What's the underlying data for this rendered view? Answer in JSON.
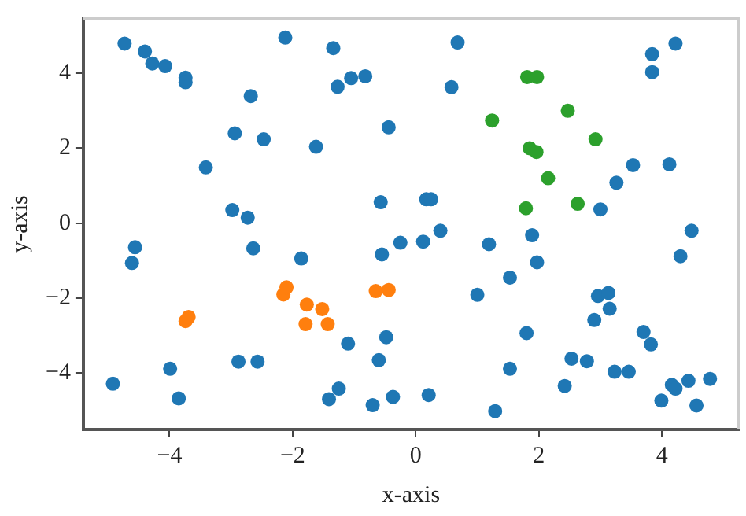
{
  "chart_data": {
    "type": "scatter",
    "xlabel": "x-axis",
    "ylabel": "y-axis",
    "xlim": [
      -5.4,
      5.25
    ],
    "ylim": [
      -5.5,
      5.45
    ],
    "xticks": [
      -4,
      -2,
      0,
      2,
      4
    ],
    "yticks": [
      -4,
      -2,
      0,
      2,
      4
    ],
    "grid": false,
    "legend": false,
    "marker": "circle",
    "series": [
      {
        "color": "#1f77b4",
        "x": [
          -4.73,
          -4.4,
          -4.28,
          -4.07,
          -3.74,
          -3.74,
          -2.12,
          -1.34,
          -1.27,
          -1.05,
          -0.82,
          -2.68,
          -2.94,
          -2.47,
          -1.62,
          -0.44,
          -3.41,
          -2.98,
          -2.73,
          -0.57,
          0.68,
          0.58,
          3.84,
          4.22,
          3.84,
          3.53,
          4.12,
          3.26,
          3.0,
          4.48,
          0.17,
          0.25,
          0.4,
          -0.25,
          0.12,
          1.19,
          1.89,
          -4.56,
          -4.61,
          -2.64,
          -1.86,
          -0.55,
          -0.48,
          -1.1,
          -0.6,
          -3.99,
          -4.92,
          -3.85,
          -2.88,
          -2.57,
          -1.41,
          -1.25,
          -0.7,
          -0.37,
          4.3,
          1.97,
          1.53,
          1.0,
          2.96,
          3.13,
          3.15,
          2.9,
          1.8,
          3.7,
          3.82,
          1.53,
          2.53,
          2.78,
          3.23,
          3.46,
          2.42,
          4.16,
          4.22,
          4.43,
          4.78,
          3.99,
          4.56,
          0.21,
          1.29
        ],
        "values": [
          4.79,
          4.58,
          4.26,
          4.19,
          3.88,
          3.76,
          4.95,
          4.67,
          3.64,
          3.87,
          3.92,
          3.39,
          2.4,
          2.24,
          2.04,
          2.56,
          1.49,
          0.35,
          0.15,
          0.56,
          4.82,
          3.63,
          4.51,
          4.79,
          4.03,
          1.55,
          1.57,
          1.08,
          0.37,
          -0.2,
          0.64,
          0.64,
          -0.2,
          -0.52,
          -0.49,
          -0.56,
          -0.32,
          -0.64,
          -1.06,
          -0.67,
          -0.94,
          -0.83,
          -3.04,
          -3.21,
          -3.65,
          -3.88,
          -4.28,
          -4.67,
          -3.69,
          -3.69,
          -4.69,
          -4.41,
          -4.85,
          -4.63,
          -0.88,
          -1.04,
          -1.45,
          -1.91,
          -1.94,
          -1.86,
          -2.28,
          -2.58,
          -2.93,
          -2.9,
          -3.23,
          -3.88,
          -3.61,
          -3.68,
          -3.96,
          -3.96,
          -4.34,
          -4.31,
          -4.41,
          -4.2,
          -4.15,
          -4.73,
          -4.86,
          -4.58,
          -5.01
        ]
      },
      {
        "color": "#ff7f0e",
        "x": [
          -3.74,
          -3.69,
          -2.15,
          -2.1,
          -1.77,
          -1.79,
          -1.52,
          -1.43,
          -0.65,
          -0.44
        ],
        "values": [
          -2.61,
          -2.5,
          -1.9,
          -1.71,
          -2.17,
          -2.69,
          -2.29,
          -2.69,
          -1.81,
          -1.78
        ]
      },
      {
        "color": "#2ca02c",
        "x": [
          1.81,
          1.97,
          1.24,
          2.47,
          2.92,
          1.85,
          1.96,
          2.15,
          1.79,
          2.63
        ],
        "values": [
          3.9,
          3.9,
          2.74,
          3.0,
          2.24,
          2.0,
          1.9,
          1.2,
          0.4,
          0.52
        ]
      }
    ]
  }
}
